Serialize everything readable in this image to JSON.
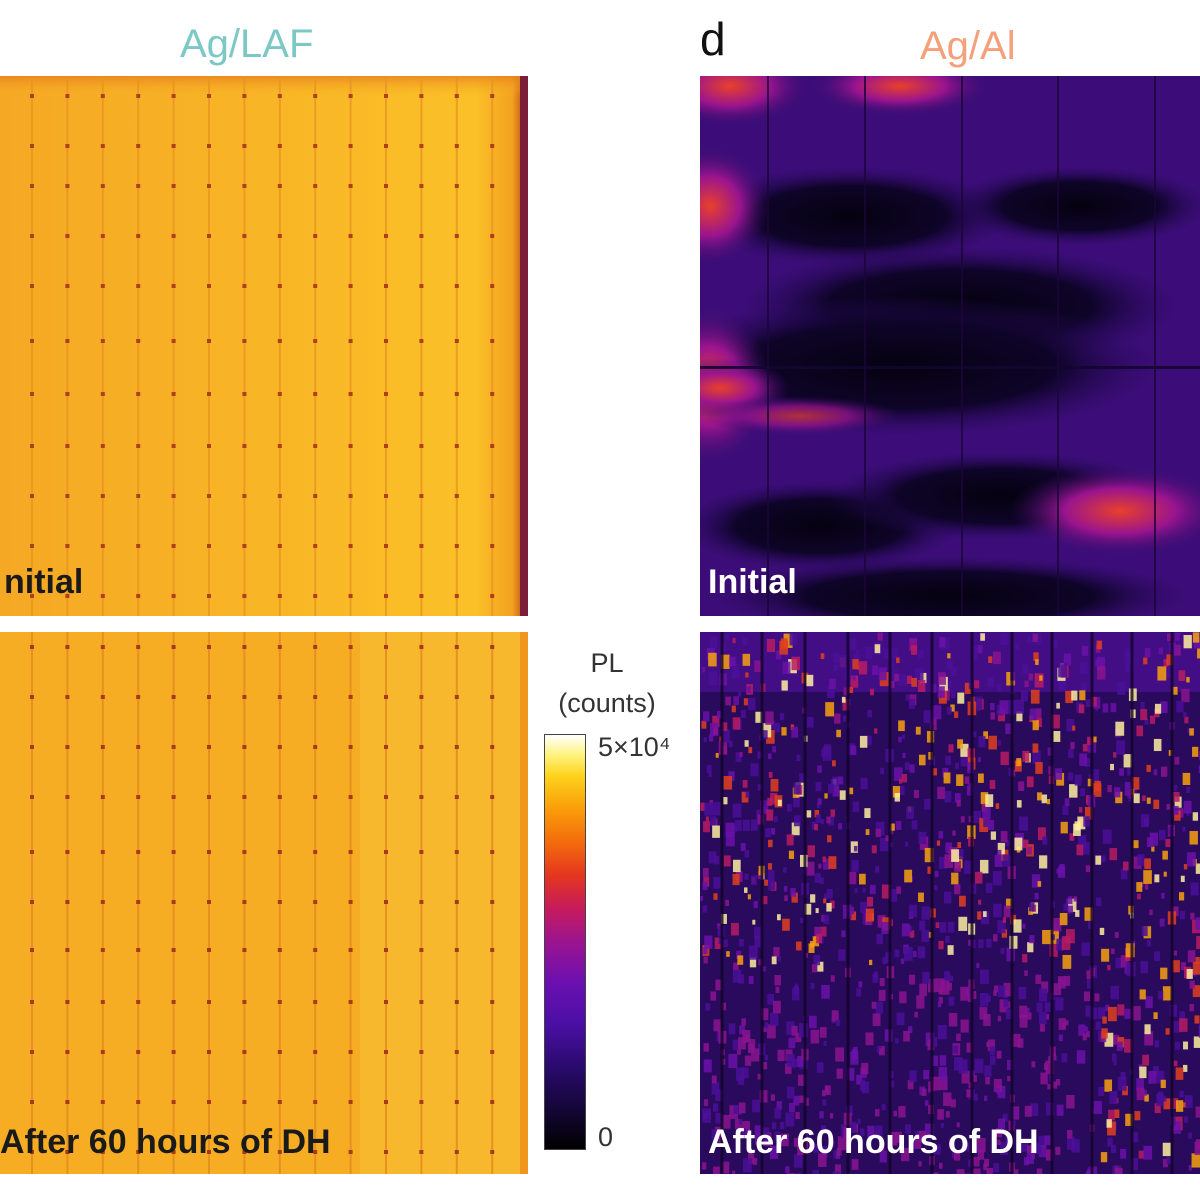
{
  "panels": {
    "left_title": "Ag/LAF",
    "right_letter": "d",
    "right_title": "Ag/Al"
  },
  "colors": {
    "left_title": "#7cc8c4",
    "right_title": "#f4a07a"
  },
  "labels": {
    "left_initial": "nitial",
    "left_after": "After 60 hours of DH",
    "right_initial": "Initial",
    "right_after": "After 60 hours of DH"
  },
  "colorbar": {
    "title_line1": "PL",
    "title_line2": "(counts)",
    "max_label": "5×10⁴",
    "min_label": "0"
  }
}
